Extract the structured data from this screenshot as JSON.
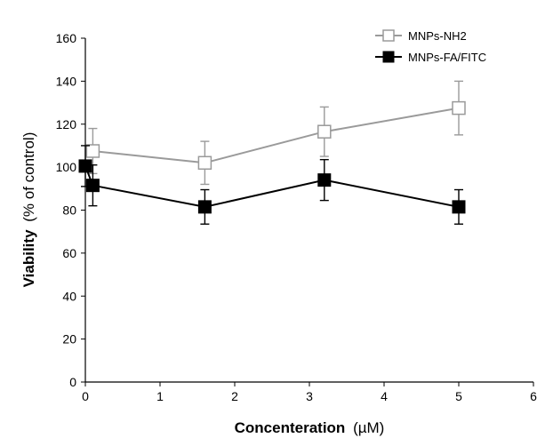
{
  "chart_data": {
    "type": "line",
    "xlabel": "Concenteration",
    "xlabel_unit": "(µM)",
    "ylabel": "Viability",
    "ylabel_unit": "(% of control)",
    "xlim": [
      0,
      6
    ],
    "ylim": [
      0,
      160
    ],
    "xticks": [
      "0",
      "1",
      "2",
      "3",
      "4",
      "5",
      "6"
    ],
    "yticks": [
      "0",
      "20",
      "40",
      "60",
      "80",
      "100",
      "120",
      "140",
      "160"
    ],
    "grid": false,
    "legend_position": "top-right",
    "series": [
      {
        "name": "MNPs-NH2",
        "color": "#9a9a9a",
        "marker": "open-square",
        "x": [
          0.1,
          1.6,
          3.2,
          5.0
        ],
        "y": [
          107.5,
          102,
          116.5,
          127.5
        ],
        "err": [
          10.5,
          10,
          11.5,
          12.5
        ]
      },
      {
        "name": "MNPs-FA/FITC",
        "color": "#000000",
        "marker": "filled-square",
        "x": [
          0,
          0.1,
          1.6,
          3.2,
          5.0
        ],
        "y": [
          100.5,
          91.5,
          81.5,
          94,
          81.5
        ],
        "err": [
          9.5,
          9.5,
          8,
          9.5,
          8
        ]
      }
    ]
  }
}
